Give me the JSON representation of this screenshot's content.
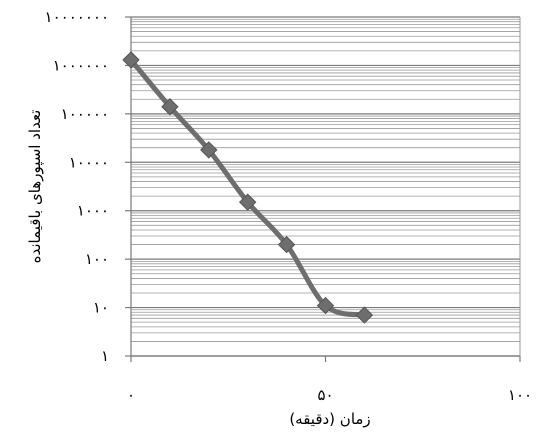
{
  "chart_data": {
    "type": "line",
    "title": "",
    "xlabel": "زمان (دقیقه)",
    "ylabel": "تعداد اسپورهای باقیمانده",
    "x_scale": "linear",
    "y_scale": "log",
    "xlim": [
      0,
      100
    ],
    "ylim": [
      1,
      10000000
    ],
    "x_ticks": [
      0,
      50,
      100
    ],
    "x_tick_labels": [
      "۰",
      "۵۰",
      "۱۰۰"
    ],
    "y_ticks": [
      1,
      10,
      100,
      1000,
      10000,
      100000,
      1000000,
      10000000
    ],
    "y_tick_labels": [
      "۱",
      "۱۰",
      "۱۰۰",
      "۱۰۰۰",
      "۱۰۰۰۰",
      "۱۰۰۰۰۰",
      "۱۰۰۰۰۰۰",
      "۱۰۰۰۰۰۰۰"
    ],
    "grid": true,
    "legend": "none",
    "line_color": "#6e6e6e",
    "marker": "diamond",
    "series": [
      {
        "x": [
          0,
          10,
          20,
          30,
          40,
          50,
          60
        ],
        "y": [
          1300000,
          140000,
          18000,
          1500,
          200,
          11,
          7
        ]
      }
    ]
  }
}
